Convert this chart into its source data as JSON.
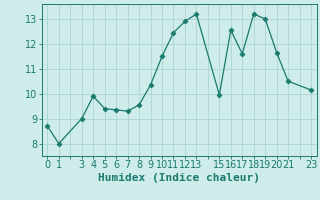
{
  "x": [
    0,
    1,
    3,
    4,
    5,
    6,
    7,
    8,
    9,
    10,
    11,
    12,
    13,
    15,
    16,
    17,
    18,
    19,
    20,
    21,
    23
  ],
  "y": [
    8.7,
    8.0,
    9.0,
    9.9,
    9.4,
    9.35,
    9.3,
    9.55,
    10.35,
    11.5,
    12.45,
    12.9,
    13.2,
    9.95,
    12.55,
    11.6,
    13.2,
    13.0,
    11.65,
    10.5,
    10.15
  ],
  "line_color": "#1a7a6e",
  "marker": "D",
  "marker_size": 2.5,
  "bg_color": "#ceecea",
  "grid_color": "#aed4d0",
  "xlabel": "Humidex (Indice chaleur)",
  "ylim": [
    7.5,
    13.6
  ],
  "xlim": [
    -0.5,
    23.5
  ],
  "yticks": [
    8,
    9,
    10,
    11,
    12,
    13
  ],
  "tick_color": "#1a7a6e",
  "label_color": "#1a7a6e",
  "xlabel_fontsize": 8,
  "tick_fontsize": 7
}
